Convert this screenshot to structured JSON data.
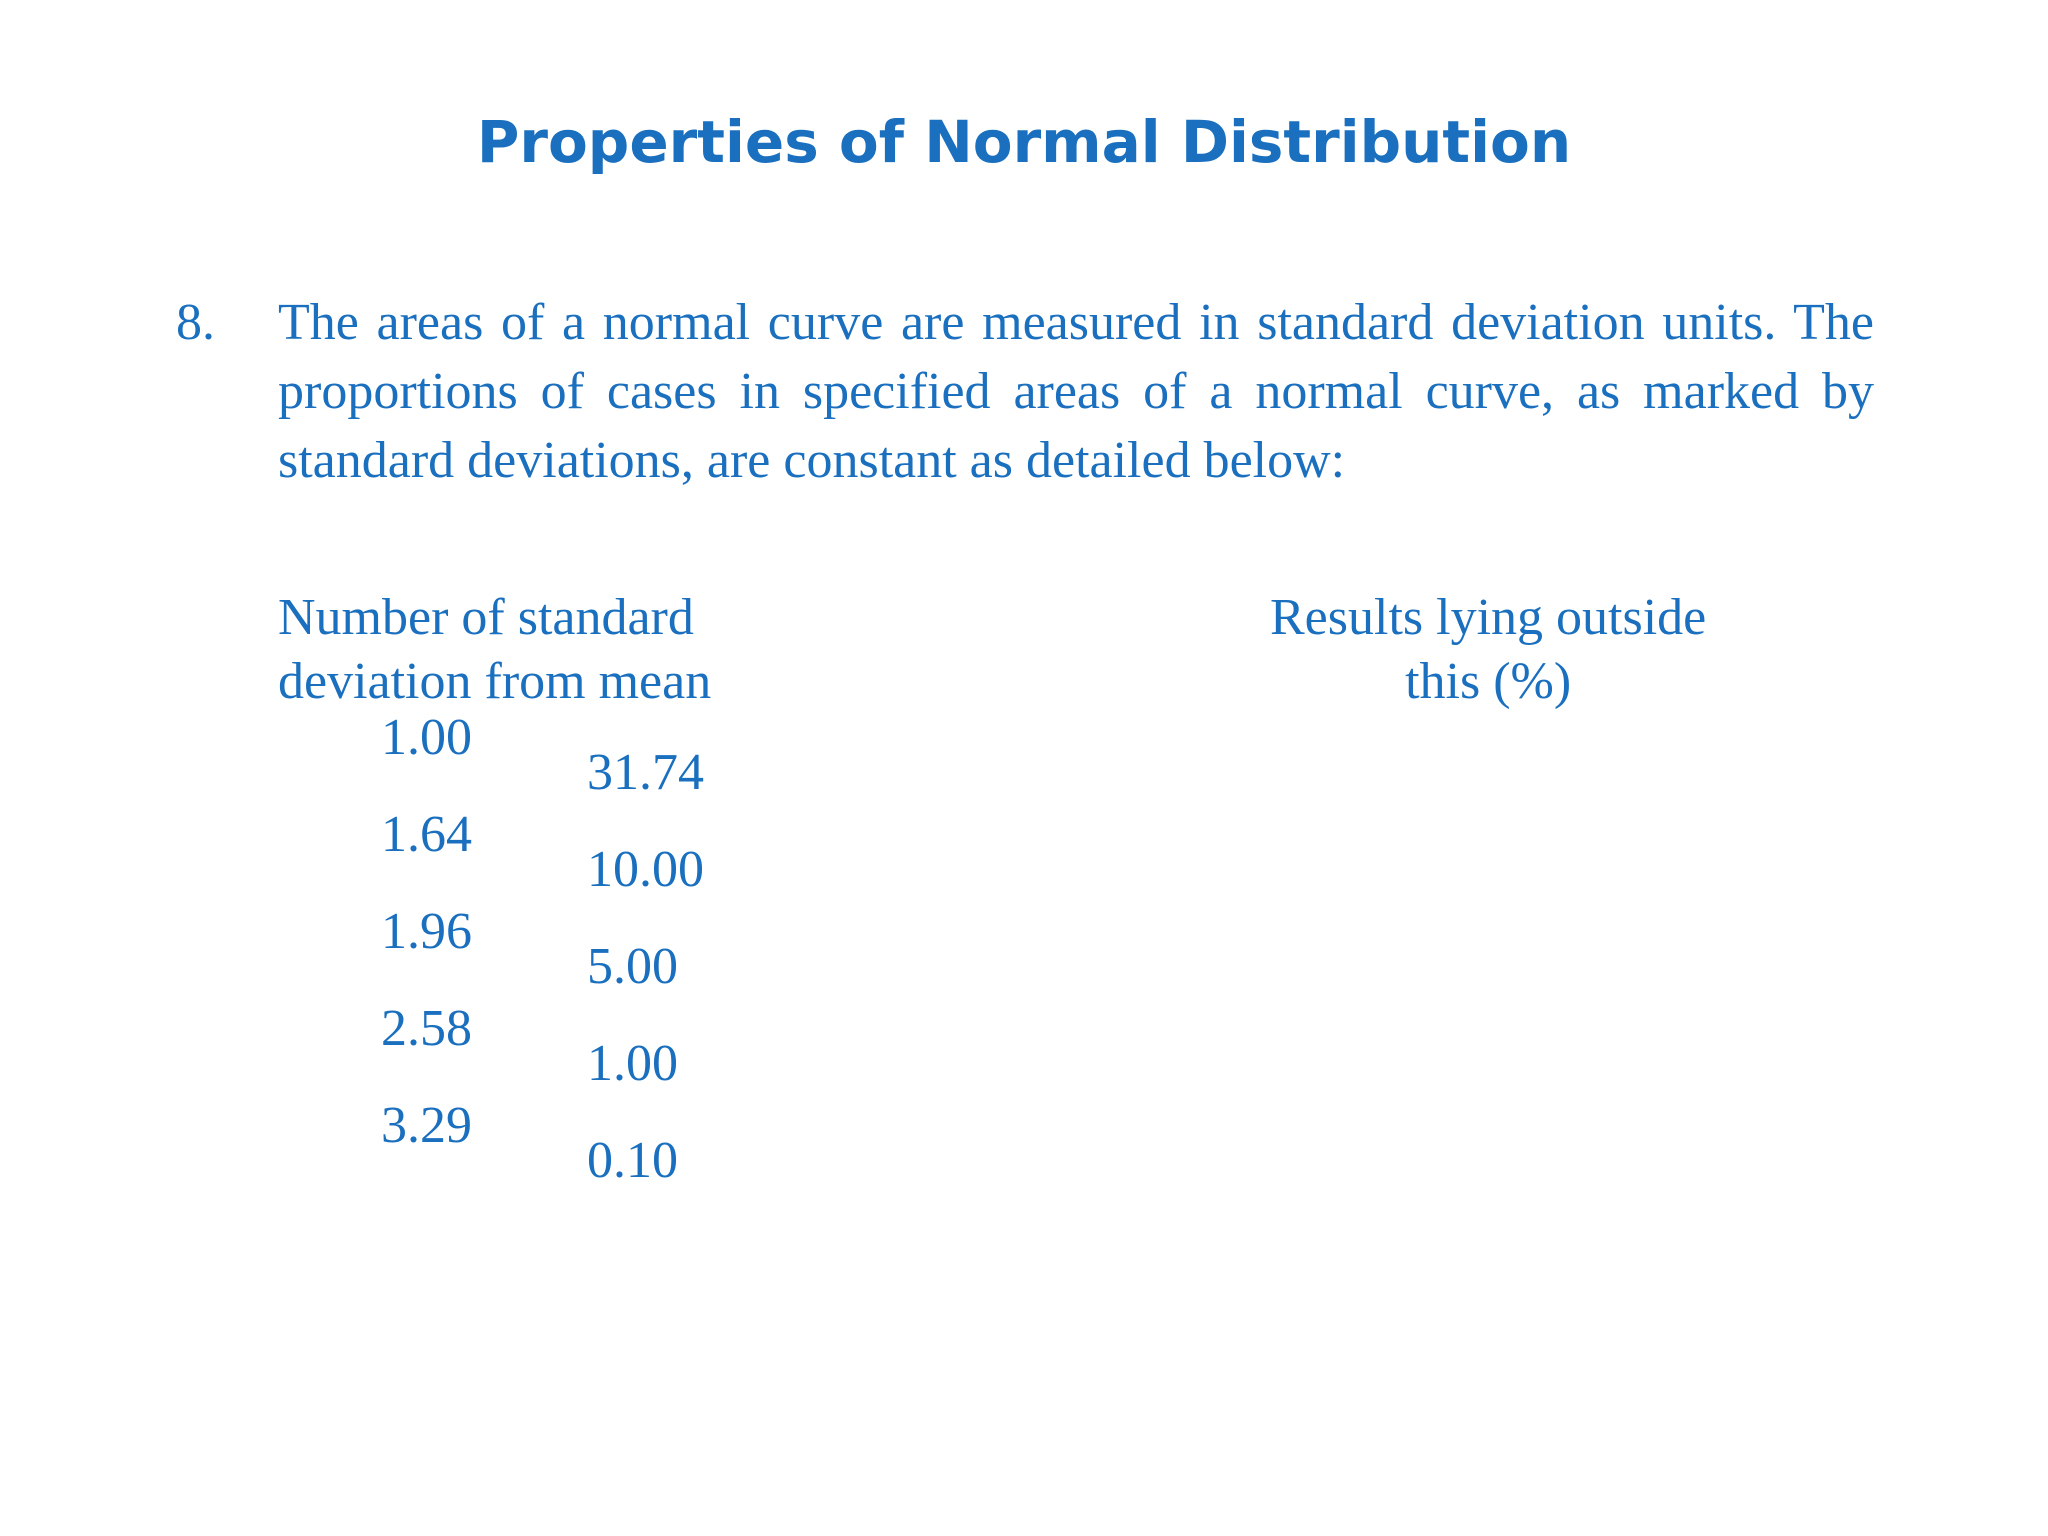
{
  "slide": {
    "title": "Properties of Normal Distribution",
    "point": {
      "number": "8.",
      "text": "The areas of a normal curve are measured in standard deviation units. The proportions of cases in specified areas of a normal curve, as marked by standard deviations, are constant as detailed below:"
    },
    "table": {
      "header_left_line1": "Number of standard",
      "header_left_line2": "deviation from mean",
      "header_right_line1": "Results lying outside",
      "header_right_line2": "this (%)",
      "sd_values": [
        "1.00",
        "1.64",
        "1.96",
        "2.58",
        "3.29"
      ],
      "pct_values": [
        "31.74",
        "10.00",
        "5.00",
        "1.00",
        "0.10"
      ]
    }
  }
}
